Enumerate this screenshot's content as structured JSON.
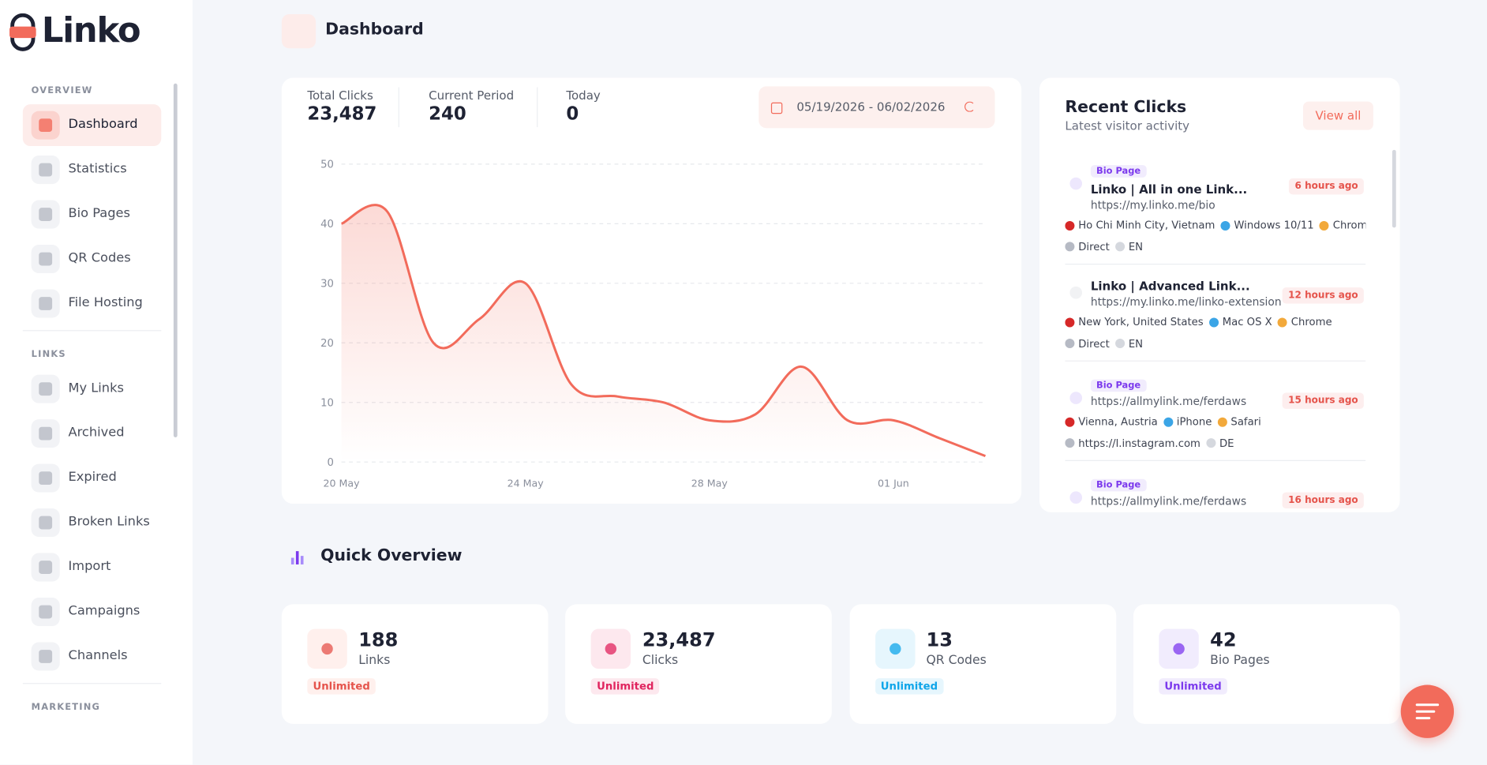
{
  "brand": "Linko",
  "sidebar": {
    "sections": [
      {
        "title": "OVERVIEW",
        "items": [
          "Dashboard",
          "Statistics",
          "Bio Pages",
          "QR Codes",
          "File Hosting"
        ]
      },
      {
        "title": "LINKS",
        "items": [
          "My Links",
          "Archived",
          "Expired",
          "Broken Links",
          "Import",
          "Campaigns",
          "Channels"
        ]
      },
      {
        "title": "MARKETING",
        "items": []
      }
    ]
  },
  "header": {
    "title": "Dashboard"
  },
  "stats": [
    {
      "label": "Total Clicks",
      "value": "23,487"
    },
    {
      "label": "Current Period",
      "value": "240"
    },
    {
      "label": "Today",
      "value": "0"
    }
  ],
  "date_range": "05/19/2026 - 06/02/2026",
  "chart_data": {
    "type": "line",
    "categories": [
      "20 May",
      null,
      null,
      null,
      "24 May",
      null,
      null,
      null,
      "28 May",
      null,
      null,
      null,
      "01 Jun",
      null,
      null
    ],
    "series": [
      {
        "name": "Clicks",
        "color": "#f26b5b",
        "values": [
          40,
          42,
          20,
          24,
          30,
          13,
          11,
          10,
          7,
          8,
          16,
          7,
          7,
          4,
          1
        ]
      }
    ],
    "ylim": [
      0,
      50
    ],
    "yticks": [
      0,
      10,
      20,
      30,
      40,
      50
    ],
    "grid": true
  },
  "recent_clicks": {
    "title": "Recent Clicks",
    "subtitle": "Latest visitor activity",
    "view_all": "View all",
    "items": [
      {
        "tag": "Bio Page",
        "title": "Linko | All in one Link...",
        "url": "https://my.linko.me/bio",
        "time": "6 hours ago",
        "location": "Ho Chi Minh City, Vietnam",
        "os": "Windows 10/11",
        "browser": "Chrome",
        "referrer": "Direct",
        "lang": "EN"
      },
      {
        "title": "Linko | Advanced Link...",
        "url": "https://my.linko.me/linko-extension",
        "time": "12 hours ago",
        "location": "New York, United States",
        "os": "Mac OS X",
        "browser": "Chrome",
        "referrer": "Direct",
        "lang": "EN"
      },
      {
        "tag": "Bio Page",
        "url": "https://allmylink.me/ferdaws",
        "time": "15 hours ago",
        "location": "Vienna, Austria",
        "os": "iPhone",
        "browser": "Safari",
        "referrer": "https://l.instagram.com",
        "lang": "DE"
      },
      {
        "tag": "Bio Page",
        "url": "https://allmylink.me/ferdaws",
        "time": "16 hours ago"
      }
    ]
  },
  "quick_overview": {
    "title": "Quick Overview",
    "cards": [
      {
        "value": "188",
        "label": "Links",
        "badge": "Unlimited"
      },
      {
        "value": "23,487",
        "label": "Clicks",
        "badge": "Unlimited"
      },
      {
        "value": "13",
        "label": "QR Codes",
        "badge": "Unlimited"
      },
      {
        "value": "42",
        "label": "Bio Pages",
        "badge": "Unlimited"
      }
    ]
  }
}
